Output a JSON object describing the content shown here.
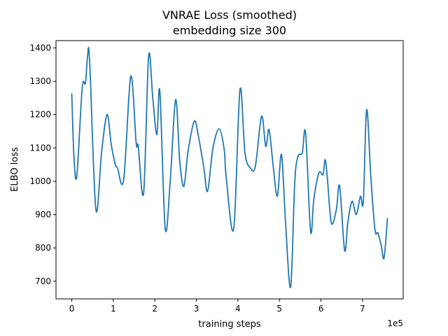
{
  "chart_data": {
    "type": "line",
    "title": "VNRAE Loss (smoothed)",
    "subtitle": "embedding size 300",
    "xlabel": "training steps",
    "ylabel": "ELBO loss",
    "x_offset_label": "1e5",
    "xlim": [
      -0.38,
      7.98
    ],
    "ylim": [
      647,
      1422
    ],
    "x_ticks": [
      0,
      1,
      2,
      3,
      4,
      5,
      6,
      7
    ],
    "x_tick_labels": [
      "0",
      "1",
      "2",
      "3",
      "4",
      "5",
      "6",
      "7"
    ],
    "y_ticks": [
      700,
      800,
      900,
      1000,
      1100,
      1200,
      1300,
      1400
    ],
    "y_tick_labels": [
      "700",
      "800",
      "900",
      "1000",
      "1100",
      "1200",
      "1300",
      "1400"
    ],
    "grid": false,
    "color": "#1f77b4",
    "series": [
      {
        "x": [
          0,
          0.05,
          0.12,
          0.25,
          0.33,
          0.38,
          0.43,
          0.58,
          0.72,
          0.85,
          0.95,
          1.05,
          1.1,
          1.25,
          1.42,
          1.55,
          1.6,
          1.73,
          1.85,
          1.95,
          2.05,
          2.12,
          2.25,
          2.37,
          2.5,
          2.6,
          2.7,
          2.8,
          2.95,
          3.05,
          3.18,
          3.27,
          3.4,
          3.55,
          3.67,
          3.72,
          3.9,
          4.05,
          4.17,
          4.3,
          4.42,
          4.57,
          4.67,
          4.75,
          4.85,
          4.95,
          5.05,
          5.15,
          5.27,
          5.37,
          5.45,
          5.55,
          5.63,
          5.75,
          5.83,
          5.95,
          6.05,
          6.1,
          6.15,
          6.25,
          6.37,
          6.45,
          6.57,
          6.65,
          6.75,
          6.85,
          6.95,
          7.02,
          7.1,
          7.2,
          7.3,
          7.37,
          7.45,
          7.52,
          7.6
        ],
        "y": [
          1262,
          1080,
          1015,
          1278,
          1295,
          1375,
          1360,
          915,
          1090,
          1200,
          1110,
          1050,
          1040,
          1005,
          1315,
          1115,
          1105,
          965,
          1375,
          1250,
          1140,
          1270,
          858,
          1000,
          1245,
          1060,
          985,
          1090,
          1180,
          1135,
          1040,
          970,
          1100,
          1157,
          1095,
          1010,
          858,
          1275,
          1085,
          1040,
          1045,
          1195,
          1105,
          1155,
          1045,
          955,
          1080,
          870,
          683,
          1000,
          1075,
          1085,
          1145,
          850,
          948,
          1025,
          1020,
          1065,
          1015,
          875,
          915,
          985,
          792,
          880,
          940,
          900,
          955,
          940,
          1215,
          1015,
          855,
          845,
          808,
          770,
          888
        ]
      }
    ]
  }
}
